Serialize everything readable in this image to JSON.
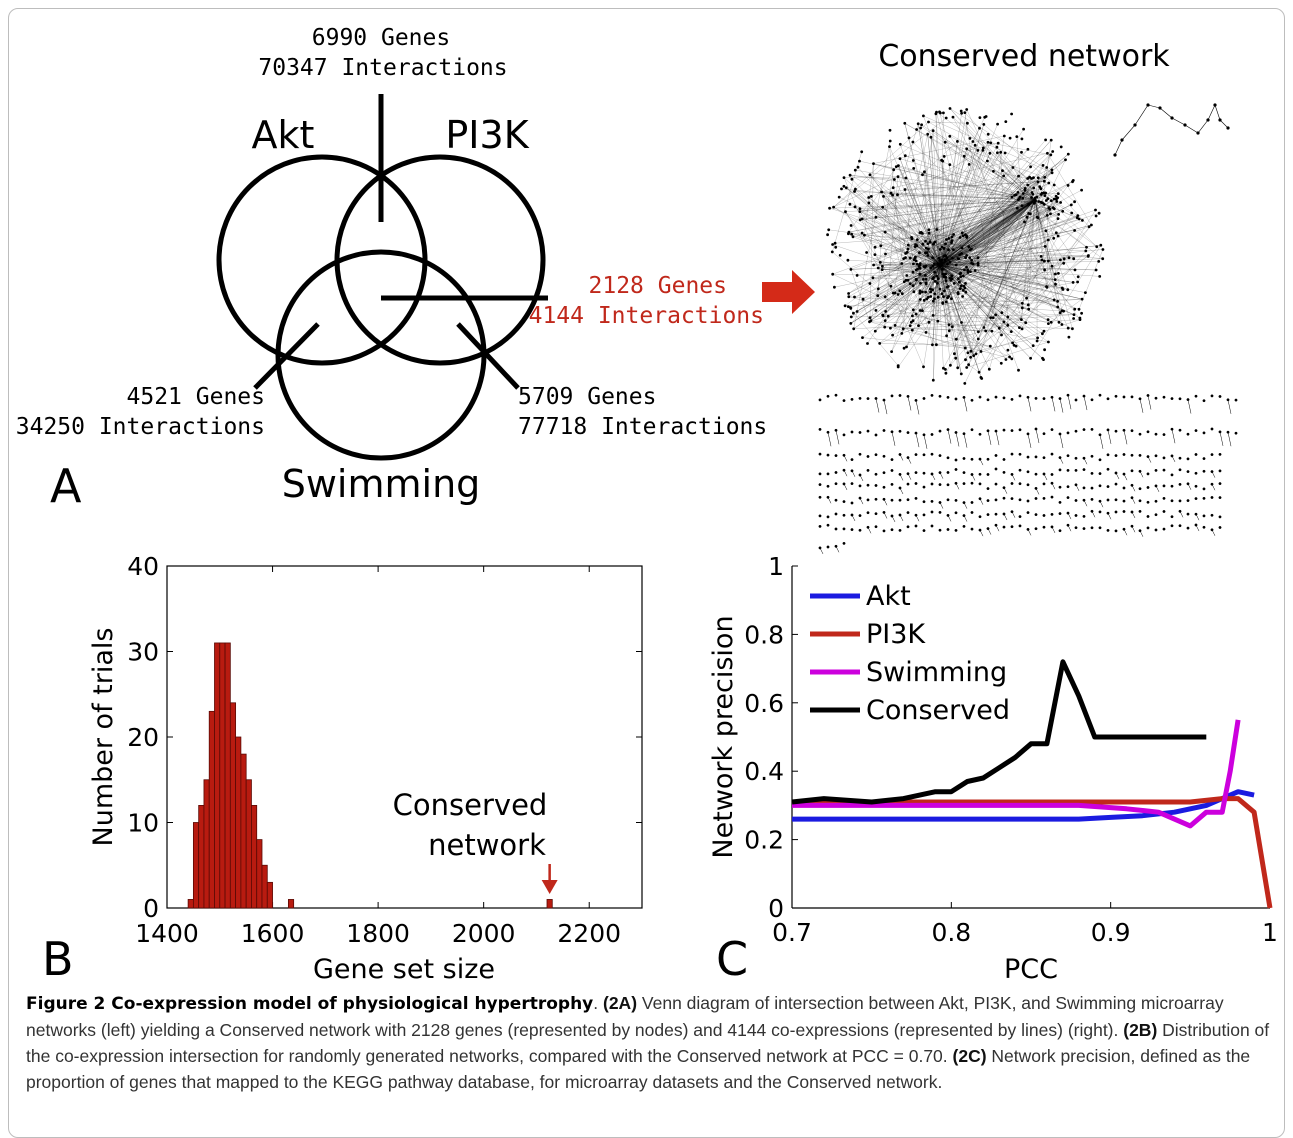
{
  "panelA": {
    "letter": "A",
    "top_genes": "6990 Genes",
    "top_interactions": "70347 Interactions",
    "akt": "Akt",
    "pi3k": "PI3K",
    "swimming": "Swimming",
    "left_genes": "4521 Genes",
    "left_interactions": "34250 Interactions",
    "right_genes": "5709 Genes",
    "right_interactions": "77718 Interactions",
    "center_genes": "2128 Genes",
    "center_interactions": "4144 Interactions",
    "network_title": "Conserved network",
    "accent_color": "#c0281b"
  },
  "chart_data": [
    {
      "panel": "B",
      "type": "bar",
      "xlabel": "Gene set size",
      "ylabel": "Number of trials",
      "xlim": [
        1400,
        2300
      ],
      "ylim": [
        0,
        40
      ],
      "xticks": [
        "1400",
        "1600",
        "1800",
        "2000",
        "2200"
      ],
      "yticks": [
        "0",
        "10",
        "20",
        "30",
        "40"
      ],
      "bin_width": 10,
      "bins_x": [
        1440,
        1450,
        1460,
        1470,
        1480,
        1490,
        1500,
        1510,
        1520,
        1530,
        1540,
        1550,
        1560,
        1570,
        1580,
        1590,
        1630
      ],
      "counts": [
        1,
        10,
        12,
        15,
        23,
        31,
        31,
        31,
        24,
        20,
        18,
        15,
        12,
        8,
        5,
        3,
        1
      ],
      "conserved_x": 2120,
      "conserved_count": 1,
      "annotation": [
        "Conserved",
        "network"
      ],
      "bar_color": "#b81b10",
      "letter": "B"
    },
    {
      "panel": "C",
      "type": "line",
      "xlabel": "PCC",
      "ylabel": "Network precision",
      "xlim": [
        0.7,
        1
      ],
      "ylim": [
        0,
        1
      ],
      "xticks": [
        "0.7",
        "0.8",
        "0.9",
        "1"
      ],
      "yticks": [
        "0",
        "0.2",
        "0.4",
        "0.6",
        "0.8",
        "1"
      ],
      "legend_position": "top-left",
      "series": [
        {
          "name": "Akt",
          "color": "#1b1be0",
          "x": [
            0.7,
            0.75,
            0.8,
            0.85,
            0.88,
            0.9,
            0.92,
            0.94,
            0.96,
            0.98,
            0.99
          ],
          "y": [
            0.26,
            0.26,
            0.26,
            0.26,
            0.26,
            0.265,
            0.27,
            0.28,
            0.3,
            0.34,
            0.33
          ]
        },
        {
          "name": "PI3K",
          "color": "#c0281b",
          "x": [
            0.7,
            0.75,
            0.8,
            0.85,
            0.9,
            0.95,
            0.97,
            0.98,
            0.99,
            1.0
          ],
          "y": [
            0.31,
            0.31,
            0.31,
            0.31,
            0.31,
            0.31,
            0.32,
            0.32,
            0.28,
            0.0
          ]
        },
        {
          "name": "Swimming",
          "color": "#cc00dd",
          "x": [
            0.7,
            0.75,
            0.8,
            0.85,
            0.88,
            0.91,
            0.93,
            0.95,
            0.96,
            0.97,
            0.975,
            0.98
          ],
          "y": [
            0.3,
            0.3,
            0.3,
            0.3,
            0.3,
            0.29,
            0.28,
            0.24,
            0.28,
            0.28,
            0.4,
            0.55
          ]
        },
        {
          "name": "Conserved",
          "color": "#000000",
          "x": [
            0.7,
            0.72,
            0.75,
            0.77,
            0.79,
            0.8,
            0.81,
            0.82,
            0.83,
            0.84,
            0.85,
            0.86,
            0.87,
            0.88,
            0.89,
            0.9,
            0.93,
            0.96
          ],
          "y": [
            0.31,
            0.32,
            0.31,
            0.32,
            0.34,
            0.34,
            0.37,
            0.38,
            0.41,
            0.44,
            0.48,
            0.48,
            0.72,
            0.62,
            0.5,
            0.5,
            0.5,
            0.5
          ]
        }
      ],
      "letter": "C"
    }
  ],
  "caption": {
    "title": "Figure 2 Co-expression model of physiological hypertrophy",
    "text1": ". ",
    "ref2a": "(2A)",
    "text2a": " Venn diagram of intersection between Akt, PI3K, and Swimming microarray networks (left) yielding a Conserved network with 2128 genes (represented by nodes) and 4144 co-expressions (represented by lines) (right). ",
    "ref2b": "(2B)",
    "text2b": " Distribution of the co-expression intersection for randomly generated networks, compared with the Conserved network at PCC = 0.70. ",
    "ref2c": "(2C)",
    "text2c": " Network precision, defined as the proportion of genes that mapped to the KEGG pathway database, for microarray datasets and the Conserved network."
  }
}
